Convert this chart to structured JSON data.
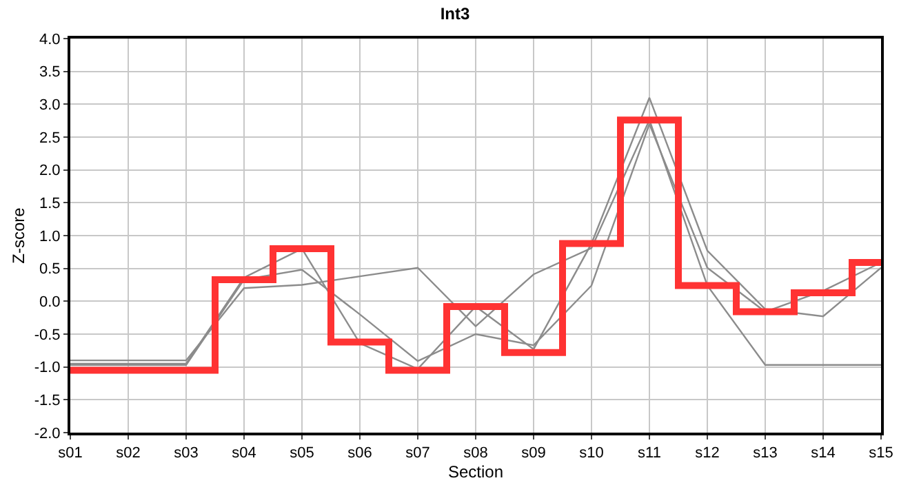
{
  "chart_data": {
    "type": "line",
    "title": "Int3",
    "xlabel": "Section",
    "ylabel": "Z-score",
    "categories": [
      "s01",
      "s02",
      "s03",
      "s04",
      "s05",
      "s06",
      "s07",
      "s08",
      "s09",
      "s10",
      "s11",
      "s12",
      "s13",
      "s14",
      "s15"
    ],
    "series": [
      {
        "color": "#8c8c8c",
        "values": [
          -0.9,
          -0.9,
          -0.9,
          0.2,
          0.25,
          0.38,
          0.51,
          -0.38,
          0.41,
          0.81,
          2.76,
          0.24,
          -0.97,
          -0.97,
          -0.97
        ]
      },
      {
        "color": "#8c8c8c",
        "values": [
          -0.95,
          -0.95,
          -0.95,
          0.36,
          0.8,
          -0.64,
          -1.03,
          -0.08,
          -0.73,
          0.88,
          3.1,
          0.77,
          -0.12,
          -0.23,
          0.51
        ]
      },
      {
        "color": "#8c8c8c",
        "values": [
          -0.97,
          -0.97,
          -0.97,
          0.33,
          0.48,
          -0.2,
          -0.91,
          -0.5,
          -0.67,
          0.24,
          2.7,
          0.51,
          -0.16,
          0.16,
          0.59
        ]
      },
      {
        "type": "step",
        "color": "#ff3333",
        "values": [
          -1.05,
          -1.05,
          -1.05,
          0.33,
          0.8,
          -0.62,
          -1.05,
          -0.08,
          -0.78,
          0.88,
          2.76,
          0.24,
          -0.16,
          0.13,
          0.59
        ]
      }
    ],
    "ylim": [
      -2,
      4
    ],
    "yticks": [
      {
        "value": -2,
        "label": "-2.0"
      },
      {
        "value": -1.5,
        "label": "-1.5"
      },
      {
        "value": -1,
        "label": "-1.0"
      },
      {
        "value": -0.5,
        "label": "-0.5"
      },
      {
        "value": 0,
        "label": "0.0"
      },
      {
        "value": 0.5,
        "label": "0.5"
      },
      {
        "value": 1,
        "label": "1.0"
      },
      {
        "value": 1.5,
        "label": "1.5"
      },
      {
        "value": 2,
        "label": "2.0"
      },
      {
        "value": 2.5,
        "label": "2.5"
      },
      {
        "value": 3,
        "label": "3.0"
      },
      {
        "value": 3.5,
        "label": "3.5"
      },
      {
        "value": 4,
        "label": "4.0"
      }
    ],
    "grid": true,
    "marker": "none"
  }
}
